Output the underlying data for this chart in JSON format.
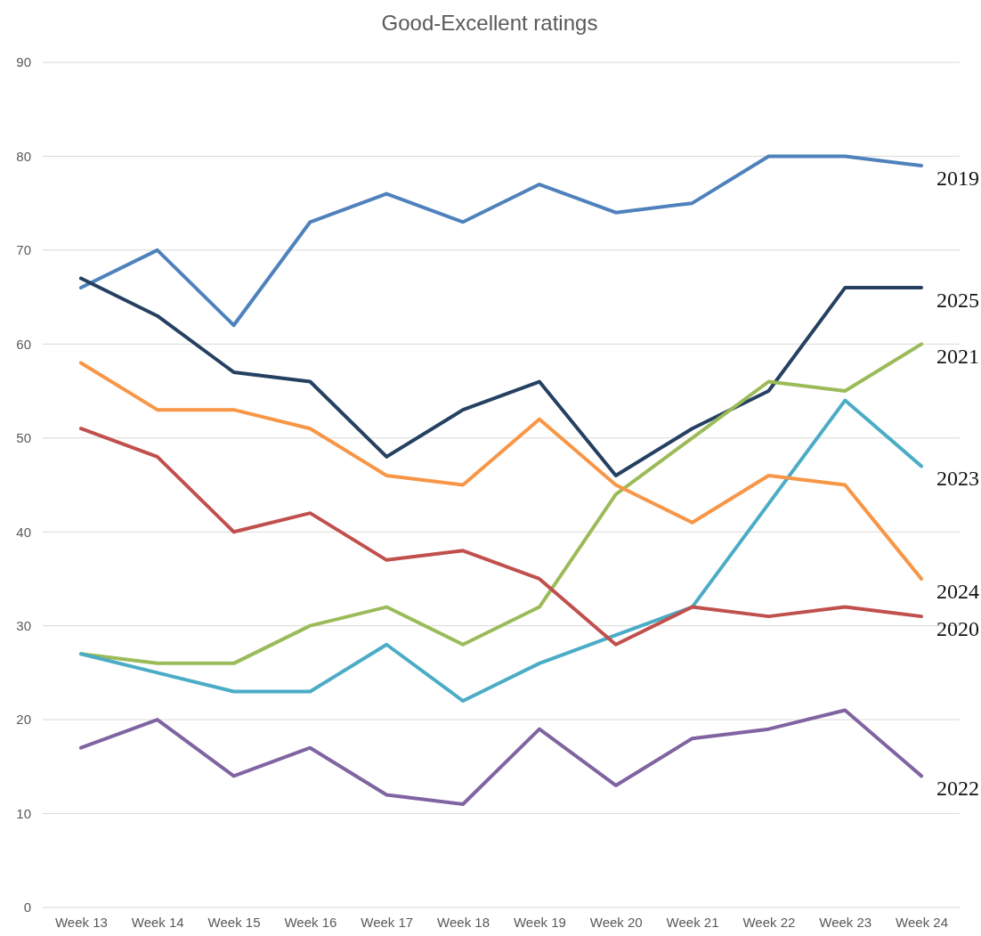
{
  "chart_data": {
    "type": "line",
    "title": "Good-Excellent ratings",
    "categories": [
      "Week 13",
      "Week 14",
      "Week 15",
      "Week 16",
      "Week 17",
      "Week 18",
      "Week 19",
      "Week 20",
      "Week 21",
      "Week 22",
      "Week 23",
      "Week 24"
    ],
    "series": [
      {
        "name": "2019",
        "color": "#4f81bd",
        "values": [
          66,
          70,
          62,
          73,
          76,
          73,
          77,
          74,
          75,
          80,
          80,
          79
        ]
      },
      {
        "name": "2025",
        "color": "#254061",
        "values": [
          67,
          63,
          57,
          56,
          48,
          53,
          56,
          46,
          51,
          55,
          66,
          66
        ]
      },
      {
        "name": "2021",
        "color": "#9bbb59",
        "values": [
          27,
          26,
          26,
          30,
          32,
          28,
          32,
          44,
          50,
          56,
          55,
          60
        ]
      },
      {
        "name": "2023",
        "color": "#4bacc6",
        "values": [
          27,
          25,
          23,
          23,
          28,
          22,
          26,
          29,
          32,
          43,
          54,
          47
        ]
      },
      {
        "name": "2024",
        "color": "#f79646",
        "values": [
          58,
          53,
          53,
          51,
          46,
          45,
          52,
          45,
          41,
          46,
          45,
          35
        ]
      },
      {
        "name": "2020",
        "color": "#c0504d",
        "values": [
          51,
          48,
          40,
          42,
          37,
          38,
          35,
          28,
          32,
          31,
          32,
          31
        ]
      },
      {
        "name": "2022",
        "color": "#8064a2",
        "values": [
          17,
          20,
          14,
          17,
          12,
          11,
          19,
          13,
          18,
          19,
          21,
          14
        ]
      }
    ],
    "ylim": [
      0,
      90
    ],
    "yticks": [
      0,
      10,
      20,
      30,
      40,
      50,
      60,
      70,
      80,
      90
    ],
    "grid": "y",
    "legend": false,
    "marker": "none",
    "line_style": "solid"
  }
}
